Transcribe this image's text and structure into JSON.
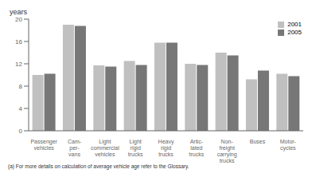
{
  "chart_data": {
    "type": "bar",
    "categories": [
      "Passenger\nvehicles",
      "Cam-\nper-\nvans",
      "Light\ncommercial\nvehicles",
      "Light\nrigid\ntrucks",
      "Heavy\nrigid\ntrucks",
      "Artic-\nlated\ntrucks",
      "Non-\nfreight\ncarrying\ntrucks",
      "Buses",
      "Motor-\ncycles"
    ],
    "series": [
      {
        "name": "2001",
        "color": "#c0c0c0",
        "values": [
          10.0,
          19.0,
          11.7,
          12.5,
          15.8,
          12.0,
          14.0,
          9.2,
          10.2
        ]
      },
      {
        "name": "2005",
        "color": "#777777",
        "values": [
          10.2,
          18.8,
          11.5,
          11.8,
          15.8,
          11.8,
          13.5,
          10.8,
          9.8
        ]
      }
    ],
    "ylabel": "years",
    "ylim": [
      0,
      20
    ],
    "yticks": [
      0,
      4,
      8,
      12,
      16,
      20
    ],
    "legend": "upper right",
    "grid": false,
    "annotations": [
      "(a) For more details on calculation of average vehicle age refer to the Glossary."
    ]
  }
}
